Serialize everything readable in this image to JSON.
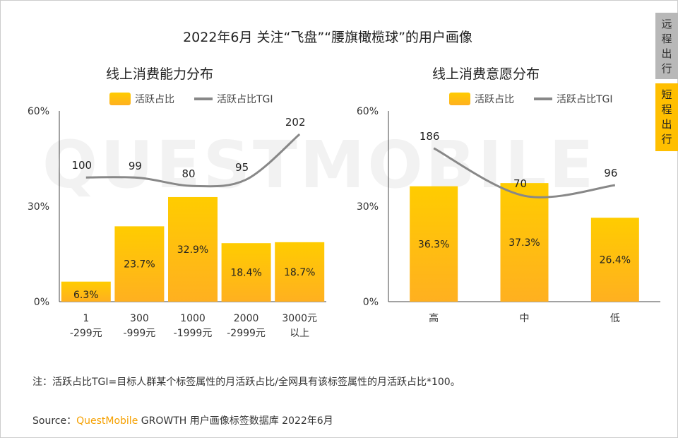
{
  "title": "2022年6月 关注“飞盘”“腰旗橄榄球”的用户画像",
  "watermark": "QUESTMOBILE",
  "side_tabs": [
    {
      "label": "远程出行",
      "color": "#b8b8b8",
      "active": false
    },
    {
      "label": "短程出行",
      "color": "#ffbf00",
      "active": true
    }
  ],
  "chart_data": [
    {
      "type": "bar",
      "title": "线上消费能力分布",
      "categories": [
        [
          "1",
          "-299元"
        ],
        [
          "300",
          "-999元"
        ],
        [
          "1000",
          "-1999元"
        ],
        [
          "2000",
          "-2999元"
        ],
        [
          "3000元",
          "以上"
        ]
      ],
      "series": [
        {
          "name": "活跃占比",
          "type": "bar",
          "values": [
            6.3,
            23.7,
            32.9,
            18.4,
            18.7
          ],
          "labels": [
            "6.3%",
            "23.7%",
            "32.9%",
            "18.4%",
            "18.7%"
          ]
        },
        {
          "name": "活跃占比TGI",
          "type": "line",
          "values": [
            100,
            99,
            80,
            95,
            202
          ]
        }
      ],
      "ylim": [
        0,
        60
      ],
      "yticks": [
        "0%",
        "30%",
        "60%"
      ],
      "y2lim": [
        -193,
        257
      ],
      "legend": "top"
    },
    {
      "type": "bar",
      "title": "线上消费意愿分布",
      "categories": [
        [
          "高"
        ],
        [
          "中"
        ],
        [
          "低"
        ]
      ],
      "series": [
        {
          "name": "活跃占比",
          "type": "bar",
          "values": [
            36.3,
            37.3,
            26.4
          ],
          "labels": [
            "36.3%",
            "37.3%",
            "26.4%"
          ]
        },
        {
          "name": "活跃占比TGI",
          "type": "line",
          "values": [
            186,
            70,
            96
          ]
        }
      ],
      "ylim": [
        0,
        60
      ],
      "yticks": [
        "0%",
        "30%",
        "60%"
      ],
      "y2lim": [
        -188,
        277
      ],
      "legend": "top"
    }
  ],
  "colors": {
    "bar_top": "#ffcc00",
    "bar_bottom": "#ffb020",
    "line": "#888888",
    "accent": "#f5a000"
  },
  "note": "注：活跃占比TGI=目标人群某个标签属性的月活跃占比/全网具有该标签属性的月活跃占比*100。",
  "source": {
    "prefix": "Source：",
    "brand": "QuestMobile",
    "rest": " GROWTH 用户画像标签数据库 2022年6月"
  }
}
